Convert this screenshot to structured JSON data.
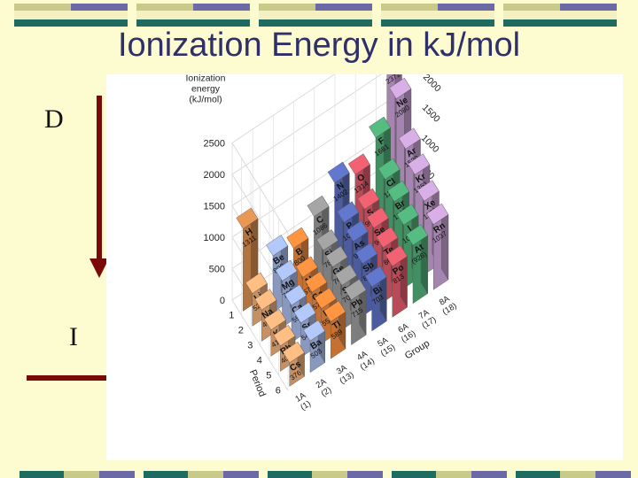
{
  "slide": {
    "title": "Ionization Energy in kJ/mol",
    "trend_down_label": "D",
    "trend_across_label": "I",
    "colors": {
      "background": "#fdfbd0",
      "title": "#2f2f6b",
      "arrow": "#7a0a0a",
      "stripe_olive": "#c9c98a",
      "stripe_purple": "#6b6aa6",
      "stripe_teal": "#1f6b5f",
      "stripe_cream": "#f4f0c2"
    }
  },
  "chart_data": {
    "type": "bar3d",
    "zlabel": "Ionization energy (kJ/mol)",
    "zticks": [
      "0",
      "500",
      "1000",
      "1500",
      "2000",
      "2500"
    ],
    "zticks_right": [
      "0",
      "500",
      "1000",
      "1500",
      "2000",
      "2500"
    ],
    "period_axis_label": "Period",
    "period_ticks": [
      "1",
      "2",
      "3",
      "4",
      "5",
      "6"
    ],
    "group_axis_label": "Group",
    "group_ticks": [
      {
        "a": "1A",
        "b": "(1)"
      },
      {
        "a": "2A",
        "b": "(2)"
      },
      {
        "a": "3A",
        "b": "(13)"
      },
      {
        "a": "4A",
        "b": "(14)"
      },
      {
        "a": "5A",
        "b": "(15)"
      },
      {
        "a": "6A",
        "b": "(16)"
      },
      {
        "a": "7A",
        "b": "(17)"
      },
      {
        "a": "8A",
        "b": "(18)"
      }
    ],
    "elements": [
      {
        "symbol": "H",
        "value": "1311",
        "ie": 1311,
        "group": 1,
        "period": 1,
        "color": "#d98e4f"
      },
      {
        "symbol": "He",
        "value": "2372",
        "ie": 2372,
        "group": 8,
        "period": 1,
        "color": "#c9a2d6"
      },
      {
        "symbol": "Li",
        "value": "520",
        "ie": 520,
        "group": 1,
        "period": 2,
        "color": "#f0b07a"
      },
      {
        "symbol": "Be",
        "value": "899",
        "ie": 899,
        "group": 2,
        "period": 2,
        "color": "#a6b9e8"
      },
      {
        "symbol": "B",
        "value": "800",
        "ie": 800,
        "group": 3,
        "period": 2,
        "color": "#f28a3c"
      },
      {
        "symbol": "C",
        "value": "1086",
        "ie": 1086,
        "group": 4,
        "period": 2,
        "color": "#9a9a9a"
      },
      {
        "symbol": "N",
        "value": "1402",
        "ie": 1402,
        "group": 5,
        "period": 2,
        "color": "#5b6fc0"
      },
      {
        "symbol": "O",
        "value": "1314",
        "ie": 1314,
        "group": 6,
        "period": 2,
        "color": "#e05b6a"
      },
      {
        "symbol": "F",
        "value": "1681",
        "ie": 1681,
        "group": 7,
        "period": 2,
        "color": "#4fae78"
      },
      {
        "symbol": "Ne",
        "value": "2080",
        "ie": 2080,
        "group": 8,
        "period": 2,
        "color": "#c9a2d6"
      },
      {
        "symbol": "Na",
        "value": "496",
        "ie": 496,
        "group": 1,
        "period": 3,
        "color": "#f0b07a"
      },
      {
        "symbol": "Mg",
        "value": "738",
        "ie": 738,
        "group": 2,
        "period": 3,
        "color": "#a6b9e8"
      },
      {
        "symbol": "Al",
        "value": "577",
        "ie": 577,
        "group": 3,
        "period": 3,
        "color": "#f28a3c"
      },
      {
        "symbol": "Si",
        "value": "786",
        "ie": 786,
        "group": 4,
        "period": 3,
        "color": "#9a9a9a"
      },
      {
        "symbol": "P",
        "value": "1012",
        "ie": 1012,
        "group": 5,
        "period": 3,
        "color": "#5b6fc0"
      },
      {
        "symbol": "S",
        "value": "999",
        "ie": 999,
        "group": 6,
        "period": 3,
        "color": "#e05b6a"
      },
      {
        "symbol": "Cl",
        "value": "1256",
        "ie": 1256,
        "group": 7,
        "period": 3,
        "color": "#4fae78"
      },
      {
        "symbol": "Ar",
        "value": "1520",
        "ie": 1520,
        "group": 8,
        "period": 3,
        "color": "#c9a2d6"
      },
      {
        "symbol": "K",
        "value": "419",
        "ie": 419,
        "group": 1,
        "period": 4,
        "color": "#f0b07a"
      },
      {
        "symbol": "Ca",
        "value": "590",
        "ie": 590,
        "group": 2,
        "period": 4,
        "color": "#a6b9e8"
      },
      {
        "symbol": "Ga",
        "value": "579",
        "ie": 579,
        "group": 3,
        "period": 4,
        "color": "#f28a3c"
      },
      {
        "symbol": "Ge",
        "value": "761",
        "ie": 761,
        "group": 4,
        "period": 4,
        "color": "#9a9a9a"
      },
      {
        "symbol": "As",
        "value": "947",
        "ie": 947,
        "group": 5,
        "period": 4,
        "color": "#5b6fc0"
      },
      {
        "symbol": "Se",
        "value": "941",
        "ie": 941,
        "group": 6,
        "period": 4,
        "color": "#e05b6a"
      },
      {
        "symbol": "Br",
        "value": "1143",
        "ie": 1143,
        "group": 7,
        "period": 4,
        "color": "#4fae78"
      },
      {
        "symbol": "Kr",
        "value": "1351",
        "ie": 1351,
        "group": 8,
        "period": 4,
        "color": "#c9a2d6"
      },
      {
        "symbol": "Rb",
        "value": "403",
        "ie": 403,
        "group": 1,
        "period": 5,
        "color": "#f0b07a"
      },
      {
        "symbol": "Sr",
        "value": "549",
        "ie": 549,
        "group": 2,
        "period": 5,
        "color": "#a6b9e8"
      },
      {
        "symbol": "In",
        "value": "558",
        "ie": 558,
        "group": 3,
        "period": 5,
        "color": "#f28a3c"
      },
      {
        "symbol": "Sn",
        "value": "708",
        "ie": 708,
        "group": 4,
        "period": 5,
        "color": "#9a9a9a"
      },
      {
        "symbol": "Sb",
        "value": "834",
        "ie": 834,
        "group": 5,
        "period": 5,
        "color": "#5b6fc0"
      },
      {
        "symbol": "Te",
        "value": "869",
        "ie": 869,
        "group": 6,
        "period": 5,
        "color": "#e05b6a"
      },
      {
        "symbol": "I",
        "value": "1009",
        "ie": 1009,
        "group": 7,
        "period": 5,
        "color": "#4fae78"
      },
      {
        "symbol": "Xe",
        "value": "1170",
        "ie": 1170,
        "group": 8,
        "period": 5,
        "color": "#c9a2d6"
      },
      {
        "symbol": "Cs",
        "value": "376",
        "ie": 376,
        "group": 1,
        "period": 6,
        "color": "#f0b07a"
      },
      {
        "symbol": "Ba",
        "value": "503",
        "ie": 503,
        "group": 2,
        "period": 6,
        "color": "#a6b9e8"
      },
      {
        "symbol": "Tl",
        "value": "589",
        "ie": 589,
        "group": 3,
        "period": 6,
        "color": "#f28a3c"
      },
      {
        "symbol": "Pb",
        "value": "715",
        "ie": 715,
        "group": 4,
        "period": 6,
        "color": "#9a9a9a"
      },
      {
        "symbol": "Bi",
        "value": "703",
        "ie": 703,
        "group": 5,
        "period": 6,
        "color": "#5b6fc0"
      },
      {
        "symbol": "Po",
        "value": "813",
        "ie": 813,
        "group": 6,
        "period": 6,
        "color": "#e05b6a"
      },
      {
        "symbol": "At",
        "value": "(926)",
        "ie": 926,
        "group": 7,
        "period": 6,
        "color": "#4fae78"
      },
      {
        "symbol": "Rn",
        "value": "1037",
        "ie": 1037,
        "group": 8,
        "period": 6,
        "color": "#c9a2d6"
      }
    ]
  }
}
